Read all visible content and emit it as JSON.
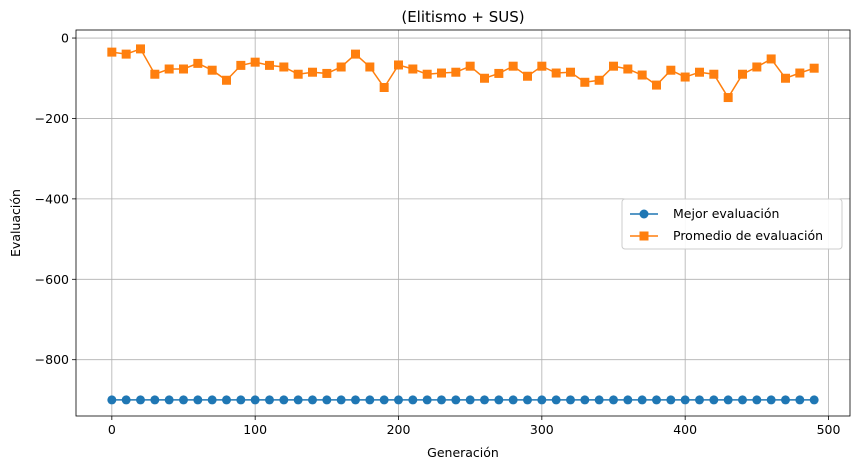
{
  "chart_data": {
    "type": "line",
    "title": "(Elitismo + SUS)",
    "xlabel": "Generación",
    "ylabel": "Evaluación",
    "xlim": [
      -25,
      515
    ],
    "ylim": [
      -940,
      20
    ],
    "xticks": [
      0,
      100,
      200,
      300,
      400,
      500
    ],
    "yticks": [
      -800,
      -600,
      -400,
      -200,
      0
    ],
    "grid": true,
    "legend_position": "center-right",
    "x": [
      0,
      10,
      20,
      30,
      40,
      50,
      60,
      70,
      80,
      90,
      100,
      110,
      120,
      130,
      140,
      150,
      160,
      170,
      180,
      190,
      200,
      210,
      220,
      230,
      240,
      250,
      260,
      270,
      280,
      290,
      300,
      310,
      320,
      330,
      340,
      350,
      360,
      370,
      380,
      390,
      400,
      410,
      420,
      430,
      440,
      450,
      460,
      470,
      480,
      490
    ],
    "series": [
      {
        "name": "Mejor evaluación",
        "color": "#1f77b4",
        "marker": "circle",
        "values": [
          -900,
          -900,
          -900,
          -900,
          -900,
          -900,
          -900,
          -900,
          -900,
          -900,
          -900,
          -900,
          -900,
          -900,
          -900,
          -900,
          -900,
          -900,
          -900,
          -900,
          -900,
          -900,
          -900,
          -900,
          -900,
          -900,
          -900,
          -900,
          -900,
          -900,
          -900,
          -900,
          -900,
          -900,
          -900,
          -900,
          -900,
          -900,
          -900,
          -900,
          -900,
          -900,
          -900,
          -900,
          -900,
          -900,
          -900,
          -900,
          -900,
          -900
        ]
      },
      {
        "name": "Promedio de evaluación",
        "color": "#ff7f0e",
        "marker": "square",
        "values": [
          -35,
          -40,
          -27,
          -90,
          -77,
          -77,
          -63,
          -80,
          -105,
          -68,
          -60,
          -68,
          -72,
          -90,
          -85,
          -88,
          -72,
          -40,
          -72,
          -123,
          -67,
          -77,
          -90,
          -87,
          -85,
          -70,
          -100,
          -88,
          -70,
          -95,
          -70,
          -87,
          -85,
          -110,
          -105,
          -70,
          -77,
          -92,
          -117,
          -80,
          -97,
          -85,
          -90,
          -148,
          -90,
          -72,
          -52,
          -100,
          -87,
          -75
        ]
      }
    ]
  }
}
